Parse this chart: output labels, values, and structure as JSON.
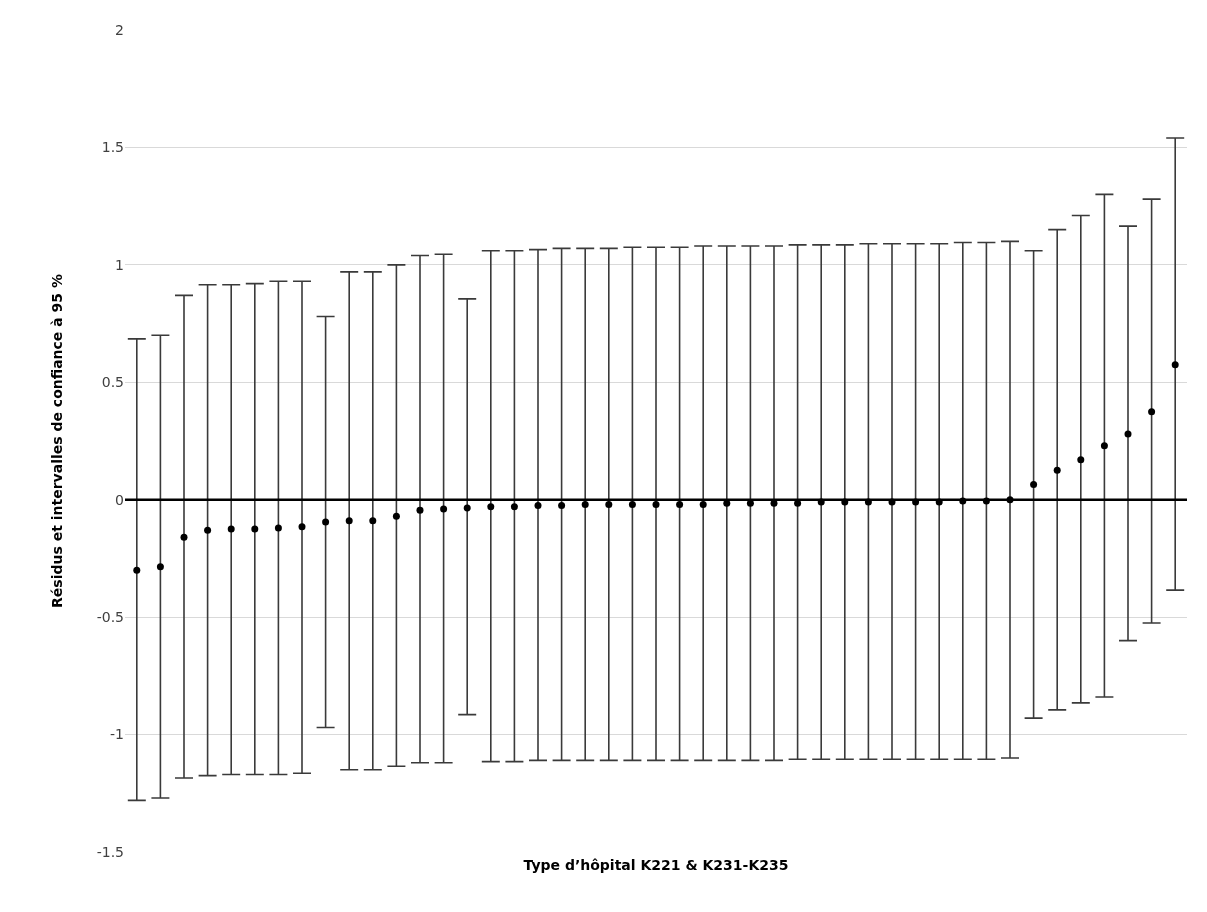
{
  "chart_data": {
    "type": "scatter",
    "xlabel": "Type d’hôpital K221 & K231-K235",
    "ylabel": "Résidus et intervalles de confiance à 95 %",
    "categories": [
      null,
      null,
      null,
      null,
      null,
      null,
      null,
      null,
      null,
      null,
      null,
      null,
      null,
      null,
      null,
      null,
      null,
      null,
      null,
      null,
      null,
      null,
      null,
      null,
      null,
      null,
      null,
      null,
      null,
      null,
      null,
      null,
      null,
      null,
      null,
      null,
      null,
      null,
      null,
      null,
      null,
      null,
      null,
      null,
      null
    ],
    "series": [
      {
        "color": "#000000",
        "values": [
          -0.3,
          -0.285,
          -0.16,
          -0.13,
          -0.125,
          -0.125,
          -0.12,
          -0.115,
          -0.095,
          -0.09,
          -0.09,
          -0.07,
          -0.045,
          -0.04,
          -0.035,
          -0.03,
          -0.03,
          -0.025,
          -0.025,
          -0.02,
          -0.02,
          -0.02,
          -0.02,
          -0.02,
          -0.02,
          -0.015,
          -0.015,
          -0.015,
          -0.015,
          -0.01,
          -0.01,
          -0.01,
          -0.01,
          -0.01,
          -0.01,
          -0.005,
          -0.005,
          0,
          0.065,
          0.125,
          0.17,
          0.23,
          0.28,
          0.375,
          0.575
        ],
        "errors": [
          [
            -1.28,
            0.685
          ],
          [
            -1.27,
            0.7
          ],
          [
            -1.185,
            0.87
          ],
          [
            -1.175,
            0.915
          ],
          [
            -1.17,
            0.915
          ],
          [
            -1.17,
            0.92
          ],
          [
            -1.17,
            0.93
          ],
          [
            -1.165,
            0.93
          ],
          [
            -0.97,
            0.78
          ],
          [
            -1.15,
            0.97
          ],
          [
            -1.15,
            0.97
          ],
          [
            -1.135,
            1.0
          ],
          [
            -1.12,
            1.04
          ],
          [
            -1.12,
            1.045
          ],
          [
            -0.915,
            0.855
          ],
          [
            -1.115,
            1.06
          ],
          [
            -1.115,
            1.06
          ],
          [
            -1.11,
            1.065
          ],
          [
            -1.11,
            1.07
          ],
          [
            -1.11,
            1.07
          ],
          [
            -1.11,
            1.07
          ],
          [
            -1.11,
            1.075
          ],
          [
            -1.11,
            1.075
          ],
          [
            -1.11,
            1.075
          ],
          [
            -1.11,
            1.08
          ],
          [
            -1.11,
            1.08
          ],
          [
            -1.11,
            1.08
          ],
          [
            -1.11,
            1.08
          ],
          [
            -1.105,
            1.085
          ],
          [
            -1.105,
            1.085
          ],
          [
            -1.105,
            1.085
          ],
          [
            -1.105,
            1.09
          ],
          [
            -1.105,
            1.09
          ],
          [
            -1.105,
            1.09
          ],
          [
            -1.105,
            1.09
          ],
          [
            -1.105,
            1.095
          ],
          [
            -1.105,
            1.095
          ],
          [
            -1.1,
            1.1
          ],
          [
            -0.93,
            1.06
          ],
          [
            -0.895,
            1.15
          ],
          [
            -0.865,
            1.21
          ],
          [
            -0.84,
            1.3
          ],
          [
            -0.6,
            1.165
          ],
          [
            -0.525,
            1.28
          ],
          [
            -0.385,
            1.54
          ]
        ]
      }
    ],
    "ylim": [
      -1.5,
      2
    ],
    "yticks": [
      -1.5,
      -1,
      -0.5,
      0,
      0.5,
      1,
      1.5,
      2
    ],
    "tick_labels": "y",
    "grid": "y",
    "marker": "circle",
    "ref_lines": [
      {
        "axis": "y",
        "value": 0,
        "color": "#000000"
      }
    ]
  }
}
